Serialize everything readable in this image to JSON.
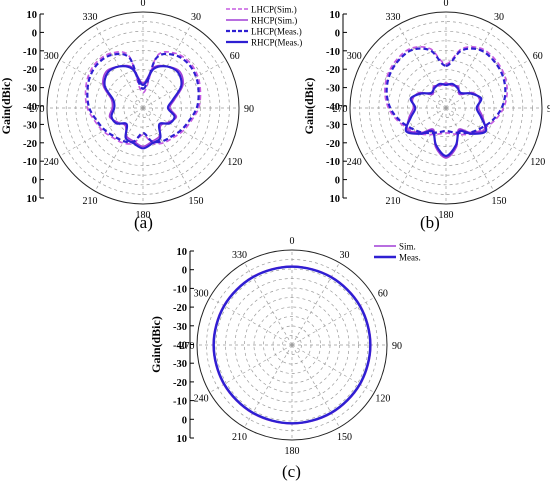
{
  "colors": {
    "sim_lhcp": "#c55be0",
    "sim": "#a13fd6",
    "meas": "#2e1fd2",
    "grid": "#9a9a9a"
  },
  "chart_data": [
    {
      "type": "line",
      "subplot": "polar",
      "caption": "(a)",
      "ylabel": "Gain(dBic)",
      "rlim": [
        -40,
        10
      ],
      "radial_ticks": [
        "10",
        "0",
        "-10",
        "-20",
        "-30",
        "-40",
        "-30",
        "-20",
        "-10",
        "0",
        "10"
      ],
      "angle_labels": [
        "0",
        "30",
        "60",
        "90",
        "120",
        "150",
        "180",
        "210",
        "240",
        "270",
        "300",
        "330"
      ],
      "legend_position": "top-right",
      "series": [
        {
          "name": "LHCP(Sim.)",
          "style": "dashed",
          "color": "#c55be0",
          "weight": 1.6,
          "angles": [
            0,
            15,
            30,
            45,
            60,
            75,
            90,
            105,
            120,
            135,
            150,
            165,
            180,
            195,
            210,
            225,
            240,
            255,
            270,
            285,
            300,
            315,
            330,
            345
          ],
          "values": [
            -32,
            -12,
            -7,
            -6,
            -7,
            -9,
            -11,
            -14,
            -16,
            -18,
            -19,
            -21,
            -26,
            -21,
            -19,
            -18,
            -16,
            -14,
            -11,
            -9,
            -7,
            -6,
            -7,
            -12
          ]
        },
        {
          "name": "RHCP(Sim.)",
          "style": "solid",
          "color": "#a13fd6",
          "weight": 1.6,
          "angles": [
            0,
            15,
            30,
            45,
            60,
            75,
            90,
            105,
            120,
            135,
            150,
            165,
            180,
            195,
            210,
            225,
            240,
            255,
            270,
            285,
            300,
            315,
            330,
            345
          ],
          "values": [
            -27,
            -18,
            -15,
            -13,
            -16,
            -23,
            -26,
            -22,
            -25,
            -27,
            -23,
            -22,
            -20,
            -22,
            -23,
            -27,
            -25,
            -22,
            -24,
            -23,
            -16,
            -13,
            -15,
            -18
          ]
        },
        {
          "name": "LHCP(Meas.)",
          "style": "dashed",
          "color": "#2e1fd2",
          "weight": 2.2,
          "angles": [
            0,
            15,
            30,
            45,
            60,
            75,
            90,
            105,
            120,
            135,
            150,
            165,
            180,
            195,
            210,
            225,
            240,
            255,
            270,
            285,
            300,
            315,
            330,
            345
          ],
          "values": [
            -30,
            -13,
            -8,
            -7,
            -8,
            -10,
            -12,
            -15,
            -17,
            -19,
            -20,
            -22,
            -27,
            -22,
            -20,
            -19,
            -17,
            -15,
            -12,
            -10,
            -8,
            -7,
            -8,
            -13
          ]
        },
        {
          "name": "RHCP(Meas.)",
          "style": "solid",
          "color": "#2e1fd2",
          "weight": 2.2,
          "angles": [
            0,
            15,
            30,
            45,
            60,
            75,
            90,
            105,
            120,
            135,
            150,
            165,
            180,
            195,
            210,
            225,
            240,
            255,
            270,
            285,
            300,
            315,
            330,
            345
          ],
          "values": [
            -28,
            -19,
            -15,
            -14,
            -17,
            -24,
            -27,
            -23,
            -24,
            -28,
            -22,
            -21,
            -19,
            -21,
            -22,
            -28,
            -24,
            -23,
            -25,
            -24,
            -17,
            -14,
            -15,
            -19
          ]
        }
      ]
    },
    {
      "type": "line",
      "subplot": "polar",
      "caption": "(b)",
      "ylabel": "Gain(dBic)",
      "rlim": [
        -40,
        10
      ],
      "radial_ticks": [
        "10",
        "0",
        "-10",
        "-20",
        "-30",
        "-40",
        "-30",
        "-20",
        "-10",
        "0",
        "10"
      ],
      "angle_labels": [
        "0",
        "30",
        "60",
        "90",
        "120",
        "150",
        "180",
        "210",
        "240",
        "270",
        "300",
        "330"
      ],
      "series": [
        {
          "name": "LHCP(Sim.)",
          "style": "dashed",
          "color": "#c55be0",
          "weight": 1.6,
          "angles": [
            0,
            15,
            30,
            45,
            60,
            75,
            90,
            105,
            120,
            135,
            150,
            165,
            180,
            195,
            210,
            225,
            240,
            255,
            270,
            285,
            300,
            315,
            330,
            345
          ],
          "values": [
            -17,
            -8,
            -4,
            -4,
            -5,
            -7,
            -10,
            -14,
            -18,
            -21,
            -24,
            -26,
            -27,
            -26,
            -24,
            -21,
            -18,
            -14,
            -10,
            -7,
            -5,
            -4,
            -4,
            -8
          ]
        },
        {
          "name": "RHCP(Sim.)",
          "style": "solid",
          "color": "#a13fd6",
          "weight": 1.6,
          "angles": [
            0,
            15,
            30,
            45,
            60,
            75,
            90,
            105,
            120,
            135,
            150,
            165,
            180,
            195,
            210,
            225,
            240,
            255,
            270,
            285,
            300,
            315,
            330,
            345
          ],
          "values": [
            -27,
            -28,
            -27,
            -30,
            -24,
            -22,
            -23,
            -20,
            -17,
            -22,
            -27,
            -19,
            -14,
            -19,
            -27,
            -22,
            -17,
            -20,
            -23,
            -22,
            -24,
            -30,
            -27,
            -28
          ]
        },
        {
          "name": "LHCP(Meas.)",
          "style": "dashed",
          "color": "#2e1fd2",
          "weight": 2.2,
          "angles": [
            0,
            15,
            30,
            45,
            60,
            75,
            90,
            105,
            120,
            135,
            150,
            165,
            180,
            195,
            210,
            225,
            240,
            255,
            270,
            285,
            300,
            315,
            330,
            345
          ],
          "values": [
            -18,
            -9,
            -5,
            -5,
            -6,
            -8,
            -11,
            -15,
            -19,
            -22,
            -25,
            -27,
            -28,
            -27,
            -25,
            -22,
            -19,
            -15,
            -11,
            -8,
            -6,
            -5,
            -5,
            -9
          ]
        },
        {
          "name": "RHCP(Meas.)",
          "style": "solid",
          "color": "#2e1fd2",
          "weight": 2.2,
          "angles": [
            0,
            15,
            30,
            45,
            60,
            75,
            90,
            105,
            120,
            135,
            150,
            165,
            180,
            195,
            210,
            225,
            240,
            255,
            270,
            285,
            300,
            315,
            330,
            345
          ],
          "values": [
            -28,
            -27,
            -28,
            -29,
            -25,
            -21,
            -24,
            -21,
            -16,
            -21,
            -26,
            -20,
            -15,
            -20,
            -26,
            -21,
            -16,
            -21,
            -24,
            -21,
            -25,
            -29,
            -28,
            -27
          ]
        }
      ]
    },
    {
      "type": "line",
      "subplot": "polar",
      "caption": "(c)",
      "ylabel": "Gain(dBic)",
      "rlim": [
        -40,
        10
      ],
      "radial_ticks": [
        "10",
        "0",
        "-10",
        "-20",
        "-30",
        "-40",
        "-30",
        "-20",
        "-10",
        "0",
        "10"
      ],
      "angle_labels": [
        "0",
        "30",
        "60",
        "90",
        "120",
        "150",
        "180",
        "210",
        "240",
        "270",
        "300",
        "330"
      ],
      "legend_position": "top-right",
      "series": [
        {
          "name": "Sim.",
          "style": "solid",
          "color": "#a13fd6",
          "weight": 1.6,
          "angles": [
            0,
            30,
            60,
            90,
            120,
            150,
            180,
            210,
            240,
            270,
            300,
            330
          ],
          "values": [
            1.5,
            1.5,
            1.5,
            1.5,
            1.5,
            1.5,
            1.5,
            1.5,
            1.5,
            1.5,
            1.5,
            1.5
          ]
        },
        {
          "name": "Meas.",
          "style": "solid",
          "color": "#2e1fd2",
          "weight": 2.4,
          "angles": [
            0,
            30,
            60,
            90,
            120,
            150,
            180,
            210,
            240,
            270,
            300,
            330
          ],
          "values": [
            1.2,
            1.2,
            1.2,
            1.2,
            1.2,
            1.2,
            1.2,
            1.2,
            1.2,
            1.2,
            1.2,
            1.2
          ]
        }
      ]
    }
  ]
}
